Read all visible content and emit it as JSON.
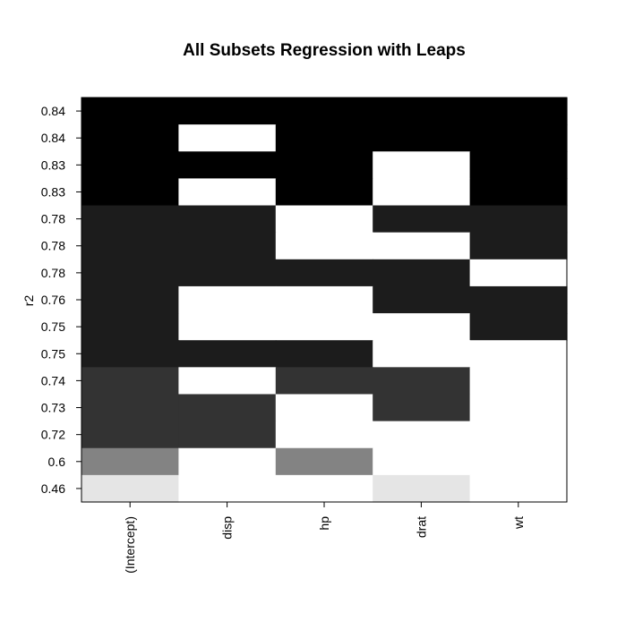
{
  "chart_data": {
    "type": "heatmap",
    "title": "All Subsets Regression with Leaps",
    "ylabel": "r2",
    "xlabel": "",
    "columns": [
      "(Intercept)",
      "disp",
      "hp",
      "drat",
      "wt"
    ],
    "rows": [
      {
        "label": "0.84",
        "included": [
          1,
          1,
          1,
          1,
          1
        ]
      },
      {
        "label": "0.84",
        "included": [
          1,
          0,
          1,
          1,
          1
        ]
      },
      {
        "label": "0.83",
        "included": [
          1,
          1,
          1,
          0,
          1
        ]
      },
      {
        "label": "0.83",
        "included": [
          1,
          0,
          1,
          0,
          1
        ]
      },
      {
        "label": "0.78",
        "included": [
          1,
          1,
          0,
          1,
          1
        ]
      },
      {
        "label": "0.78",
        "included": [
          1,
          1,
          0,
          0,
          1
        ]
      },
      {
        "label": "0.78",
        "included": [
          1,
          1,
          1,
          1,
          0
        ]
      },
      {
        "label": "0.76",
        "included": [
          1,
          0,
          0,
          1,
          1
        ]
      },
      {
        "label": "0.75",
        "included": [
          1,
          0,
          0,
          0,
          1
        ]
      },
      {
        "label": "0.75",
        "included": [
          1,
          1,
          1,
          0,
          0
        ]
      },
      {
        "label": "0.74",
        "included": [
          1,
          0,
          1,
          1,
          0
        ]
      },
      {
        "label": "0.73",
        "included": [
          1,
          1,
          0,
          1,
          0
        ]
      },
      {
        "label": "0.72",
        "included": [
          1,
          1,
          0,
          0,
          0
        ]
      },
      {
        "label": "0.6",
        "included": [
          1,
          0,
          1,
          0,
          0
        ]
      },
      {
        "label": "0.46",
        "included": [
          1,
          0,
          0,
          1,
          0
        ]
      }
    ],
    "row_shade": [
      "#000000",
      "#000000",
      "#000000",
      "#000000",
      "#1c1c1c",
      "#1c1c1c",
      "#1c1c1c",
      "#1c1c1c",
      "#1c1c1c",
      "#1c1c1c",
      "#333333",
      "#333333",
      "#333333",
      "#838383",
      "#e5e5e5"
    ],
    "excluded_color": "#ffffff",
    "grid": false,
    "legend": "none"
  }
}
